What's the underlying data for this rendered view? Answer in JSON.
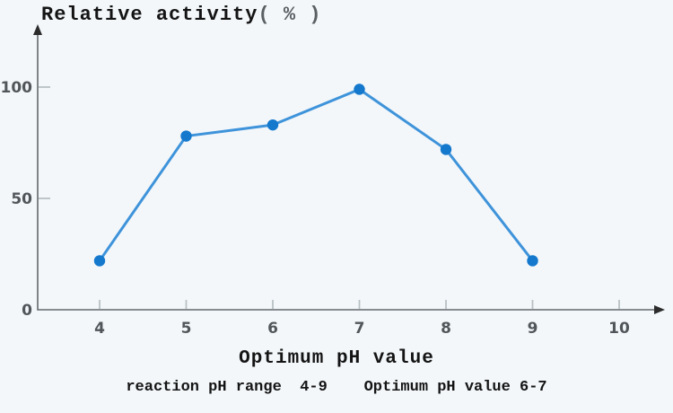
{
  "title": {
    "label": "Relative activity",
    "unit": "( % )"
  },
  "colors": {
    "background": "#f3f7fa",
    "axis": "#63686c",
    "tick": "#b9c0c5",
    "tick_label": "#51565a",
    "line": "#3e93da",
    "marker": "#1478cd",
    "text": "#141414"
  },
  "chart_data": {
    "type": "line",
    "x": [
      4,
      5,
      6,
      7,
      8,
      9
    ],
    "values": [
      22,
      78,
      83,
      99,
      72,
      22
    ],
    "series": [
      {
        "name": "Relative activity",
        "values": [
          22,
          78,
          83,
          99,
          72,
          22
        ]
      }
    ],
    "x_ticks": [
      4,
      5,
      6,
      7,
      8,
      9,
      10
    ],
    "y_ticks": [
      0,
      50,
      100
    ],
    "title": "Relative activity( % )",
    "xlabel": "Optimum pH value",
    "ylabel": "Relative activity( % )",
    "xlim": [
      3.3,
      10.5
    ],
    "ylim": [
      0,
      110
    ],
    "grid": false,
    "legend": null,
    "marker": "circle",
    "annotations": [
      "reaction pH range  4-9    Optimum pH value 6-7"
    ]
  },
  "captions": {
    "xlabel": "Optimum pH value",
    "note": "reaction pH range  4-9    Optimum pH value 6-7"
  }
}
